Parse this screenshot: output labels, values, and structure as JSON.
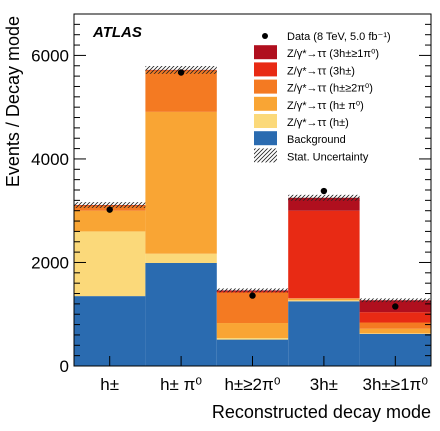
{
  "chart_data": {
    "type": "bar",
    "stacked": true,
    "experiment_label": "ATLAS",
    "xlabel": "Reconstructed decay mode",
    "ylabel": "Events / Decay mode",
    "ylim": [
      0,
      6800
    ],
    "yticks": [
      "0",
      "2000",
      "4000",
      "6000"
    ],
    "categories": [
      "h±",
      "h± π⁰",
      "h±≥2π⁰",
      "3h±",
      "3h±≥1π⁰"
    ],
    "series": [
      {
        "name": "Background",
        "color": "#2a6bb0",
        "values": [
          1350,
          1990,
          510,
          1250,
          620
        ]
      },
      {
        "name": "Z/γ*→ττ (h±)",
        "color": "#fbd97a",
        "values": [
          1250,
          180,
          30,
          20,
          10
        ]
      },
      {
        "name": "Z/γ*→ττ (h± π⁰)",
        "color": "#f9a534",
        "values": [
          400,
          2740,
          290,
          30,
          90
        ]
      },
      {
        "name": "Z/γ*→ττ (h±≥2π⁰)",
        "color": "#f47a22",
        "values": [
          100,
          800,
          590,
          10,
          120
        ]
      },
      {
        "name": "Z/γ*→ττ (3h±)",
        "color": "#e82a14",
        "values": [
          10,
          10,
          20,
          1690,
          200
        ]
      },
      {
        "name": "Z/γ*→ττ (3h±≥1π⁰)",
        "color": "#b00f1e",
        "values": [
          0,
          0,
          20,
          250,
          230
        ]
      }
    ],
    "data_series": {
      "name": "Data (8 TeV, 5.0 fb⁻¹)",
      "values": [
        3020,
        5670,
        1360,
        3380,
        1150
      ]
    },
    "uncertainty_label": "Stat. Uncertainty",
    "legend_position": "top-right",
    "grid": false
  }
}
